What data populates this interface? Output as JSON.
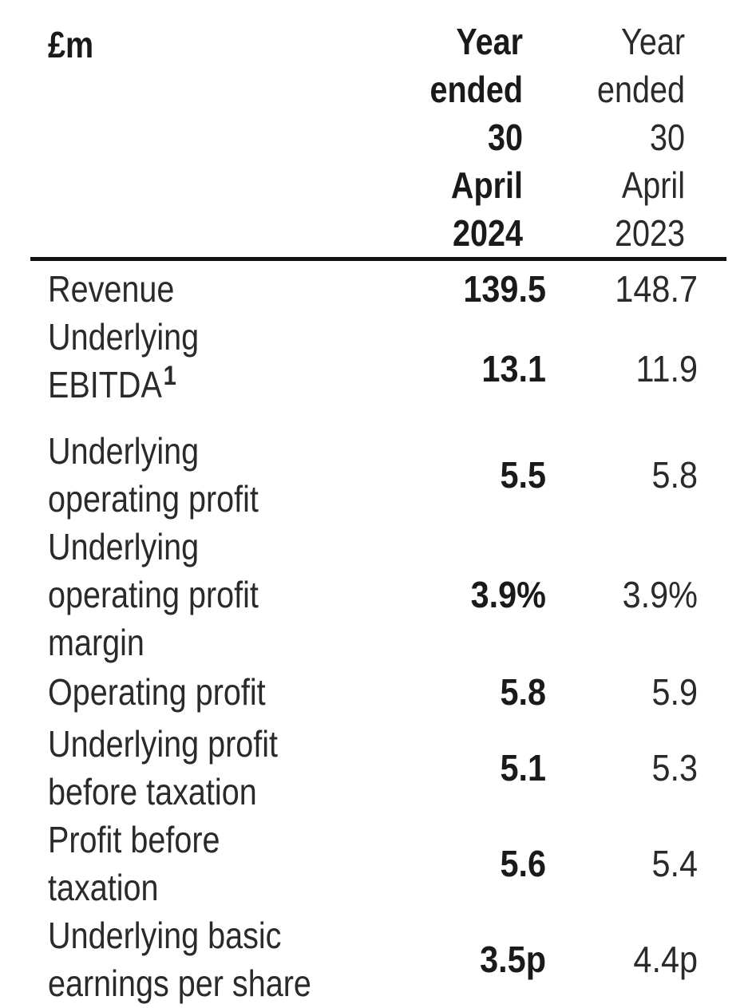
{
  "table": {
    "corner_label": "£m",
    "col_current": "Year\nended\n30\nApril\n2024",
    "col_prior": "Year\nended\n30\nApril\n2023",
    "rows": [
      {
        "label": "Revenue",
        "current": "139.5",
        "prior": "148.7"
      },
      {
        "label": "Underlying EBITDA",
        "footnote": "1",
        "current": "13.1",
        "prior": "11.9"
      },
      {
        "label": "Underlying operating profit",
        "current": "5.5",
        "prior": "5.8"
      },
      {
        "label": "Underlying operating profit margin",
        "current": "3.9%",
        "prior": "3.9%"
      },
      {
        "label": "Operating profit",
        "current": "5.8",
        "prior": "5.9"
      },
      {
        "label": "Underlying profit before taxation",
        "current": "5.1",
        "prior": "5.3"
      },
      {
        "label": "Profit before taxation",
        "current": "5.6",
        "prior": "5.4"
      },
      {
        "label": "Underlying basic earnings per share",
        "current": "3.5p",
        "prior": "4.4p"
      }
    ]
  }
}
